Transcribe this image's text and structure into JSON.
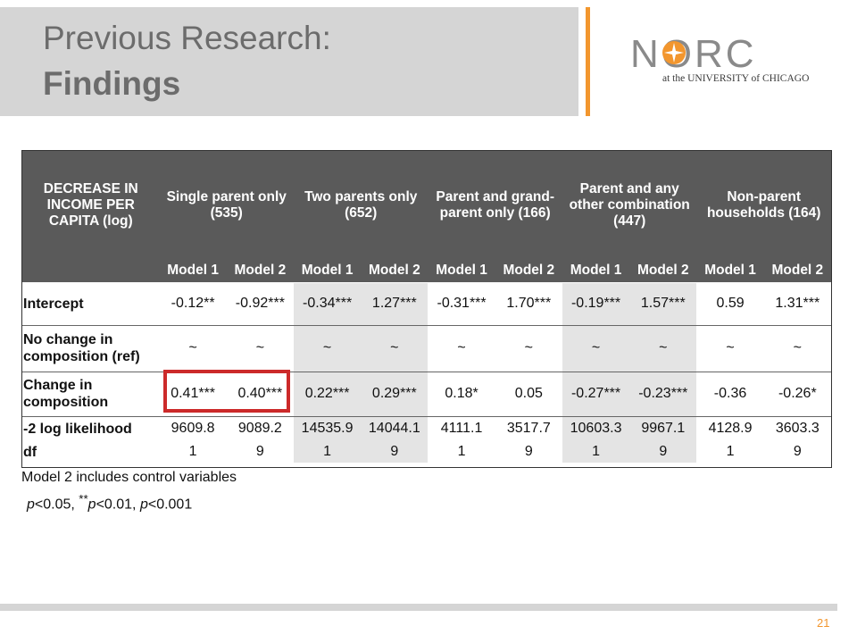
{
  "slide": {
    "title_line1": "Previous Research:",
    "title_line2": "Findings",
    "page_number": "21"
  },
  "logo": {
    "wordmark": "NORC",
    "subtitle": "at the UNIVERSITY of CHICAGO",
    "colors": {
      "text": "#8a8a8a",
      "star": "#f2962e"
    }
  },
  "table": {
    "corner_header": "DECREASE IN INCOME PER CAPITA (log)",
    "groups": [
      "Single parent only (535)",
      "Two parents only (652)",
      "Parent and grand-parent only (166)",
      "Parent and any other combination (447)",
      "Non-parent households (164)"
    ],
    "model_labels": [
      "Model 1",
      "Model 2",
      "Model 1",
      "Model 2",
      "Model 1",
      "Model 2",
      "Model 1",
      "Model 2",
      "Model 1",
      "Model 2"
    ],
    "rows": [
      {
        "label": "Intercept",
        "values": [
          "-0.12**",
          "-0.92***",
          "-0.34***",
          "1.27***",
          "-0.31***",
          "1.70***",
          "-0.19***",
          "1.57***",
          "0.59",
          "1.31***"
        ]
      },
      {
        "label": "No change in composition (ref)",
        "values": [
          "~",
          "~",
          "~",
          "~",
          "~",
          "~",
          "~",
          "~",
          "~",
          "~"
        ]
      },
      {
        "label": "Change in composition",
        "values": [
          "0.41***",
          "0.40***",
          "0.22***",
          "0.29***",
          "0.18*",
          "0.05",
          "-0.27***",
          "-0.23***",
          "-0.36",
          "-0.26*"
        ]
      },
      {
        "label": "-2 log likelihood",
        "values": [
          "9609.8",
          "9089.2",
          "14535.9",
          "14044.1",
          "4111.1",
          "3517.7",
          "10603.3",
          "9967.1",
          "4128.9",
          "3603.3"
        ]
      },
      {
        "label": "df",
        "values": [
          "1",
          "9",
          "1",
          "9",
          "1",
          "9",
          "1",
          "9",
          "1",
          "9"
        ]
      }
    ],
    "note": "Model 2 includes control variables",
    "significance": {
      "p": "p",
      "t1": "<0.05, ",
      "stars2": "**",
      "t2": "<0.01, ",
      "t3": "<0.001"
    }
  },
  "colors": {
    "header_bg": "#5a5a5a",
    "shade": "#e4e4e4",
    "highlight": "#cc2a2a",
    "accent": "#f2962e",
    "title_bar": "#d5d5d5"
  }
}
